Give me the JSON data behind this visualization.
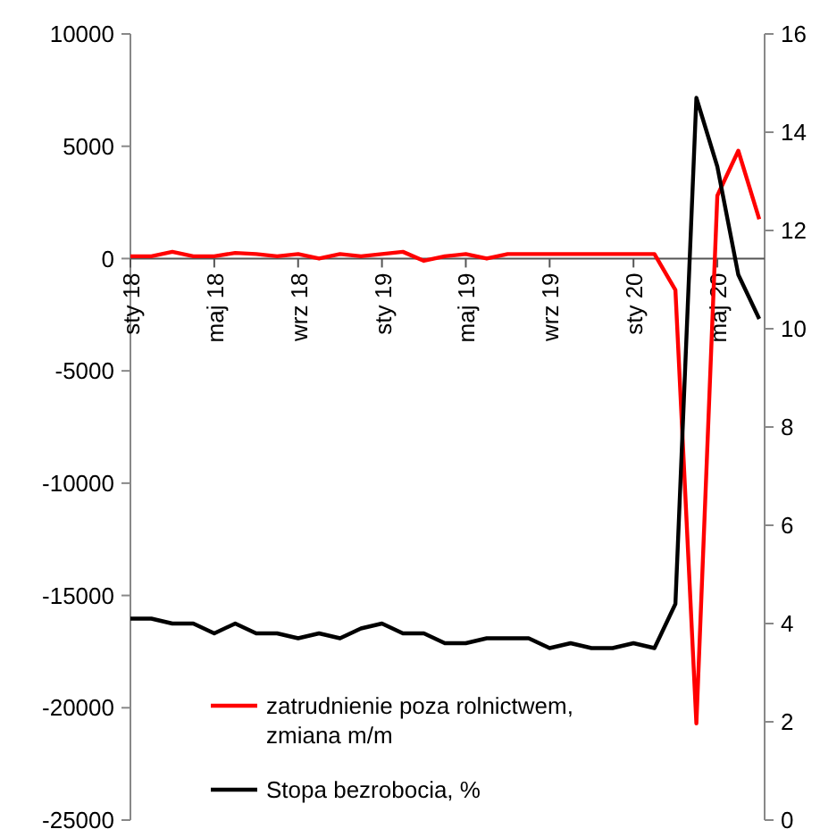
{
  "chart_data": {
    "type": "line",
    "categories": [
      "sty 18",
      null,
      null,
      null,
      "maj 18",
      null,
      null,
      null,
      "wrz 18",
      null,
      null,
      null,
      "sty 19",
      null,
      null,
      null,
      "maj 19",
      null,
      null,
      null,
      "wrz 19",
      null,
      null,
      null,
      "sty 20",
      null,
      null,
      null,
      "maj 20",
      null,
      null
    ],
    "series": [
      {
        "name": "zatrudnienie poza rolnictwem, zmiana m/m",
        "color": "#ff0000",
        "values": [
          100,
          100,
          300,
          100,
          100,
          250,
          200,
          100,
          200,
          0,
          200,
          100,
          200,
          300,
          -100,
          100,
          200,
          0,
          200,
          200,
          200,
          200,
          200,
          200,
          200,
          200,
          -1400,
          -20700,
          2800,
          4800,
          1750
        ]
      },
      {
        "name": "Stopa bezrobocia, %",
        "color": "#000000",
        "axis": "y2",
        "values": [
          4.1,
          4.1,
          4.0,
          4.0,
          3.8,
          4.0,
          3.8,
          3.8,
          3.7,
          3.8,
          3.7,
          3.9,
          4.0,
          3.8,
          3.8,
          3.6,
          3.6,
          3.7,
          3.7,
          3.7,
          3.5,
          3.6,
          3.5,
          3.5,
          3.6,
          3.5,
          4.4,
          14.7,
          13.3,
          11.1,
          10.2
        ]
      }
    ],
    "ylim": [
      -25000,
      10000
    ],
    "yticks": [
      -25000,
      -20000,
      -15000,
      -10000,
      -5000,
      0,
      5000,
      10000
    ],
    "y2lim": [
      0,
      16
    ],
    "y2ticks": [
      0,
      2,
      4,
      6,
      8,
      10,
      12,
      14,
      16
    ],
    "legend": "bottom left",
    "grid": false,
    "marker": "none",
    "line_style": "solid"
  }
}
